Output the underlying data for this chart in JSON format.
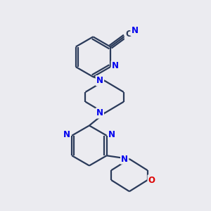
{
  "bg_color": "#ebebf0",
  "bond_color": "#2a3a5a",
  "n_color": "#0000ee",
  "o_color": "#dd0000",
  "line_width": 1.6,
  "font_size": 8.5,
  "fig_w": 3.0,
  "fig_h": 3.0,
  "dpi": 100,
  "xlim": [
    -0.05,
    1.05
  ],
  "ylim": [
    -0.02,
    1.08
  ]
}
